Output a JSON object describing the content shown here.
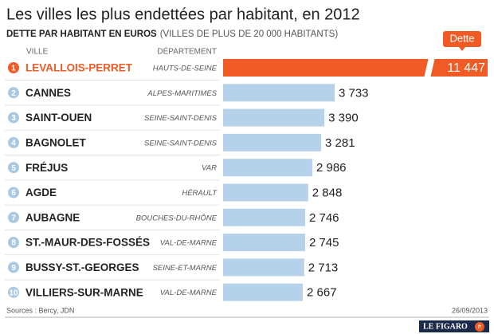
{
  "chart_data": {
    "type": "bar",
    "title": "Les villes les plus endettées par habitant, en 2012",
    "subtitle": "DETTE PAR HABITANT EN EUROS",
    "subtitle_note": "(VILLES DE PLUS DE 20 000 HABITANTS)",
    "column_headers": [
      "VILLE",
      "DÉPARTEMENT"
    ],
    "value_badge": "Dette",
    "ranks": [
      1,
      2,
      3,
      4,
      5,
      6,
      7,
      8,
      9,
      10
    ],
    "categories": [
      "LEVALLOIS-PERRET",
      "CANNES",
      "SAINT-OUEN",
      "BAGNOLET",
      "FRÉJUS",
      "AGDE",
      "AUBAGNE",
      "ST.-MAUR-DES-FOSSÉS",
      "BUSSY-ST.-GEORGES",
      "VILLIERS-SUR-MARNE"
    ],
    "departments": [
      "HAUTS-DE-SEINE",
      "ALPES-MARITIMES",
      "SEINE-SAINT-DENIS",
      "SEINE-SAINT-DENIS",
      "VAR",
      "HÉRAULT",
      "BOUCHES-DU-RHÔNE",
      "VAL-DE-MARNE",
      "SEINE-ET-MARNE",
      "VAL-DE-MARNE"
    ],
    "values": [
      11447,
      3733,
      3390,
      3281,
      2986,
      2848,
      2746,
      2745,
      2713,
      2667
    ],
    "value_labels": [
      "11 447",
      "3 733",
      "3 390",
      "3 281",
      "2 986",
      "2 848",
      "2 746",
      "2 745",
      "2 713",
      "2 667"
    ],
    "color": "#b5d2ea",
    "highlight_color": "#f05a24",
    "source": "Sources : Bercy, JDN",
    "date": "26/09/2013",
    "logo": "LE FIGARO",
    "logo_suffix": "fr"
  }
}
